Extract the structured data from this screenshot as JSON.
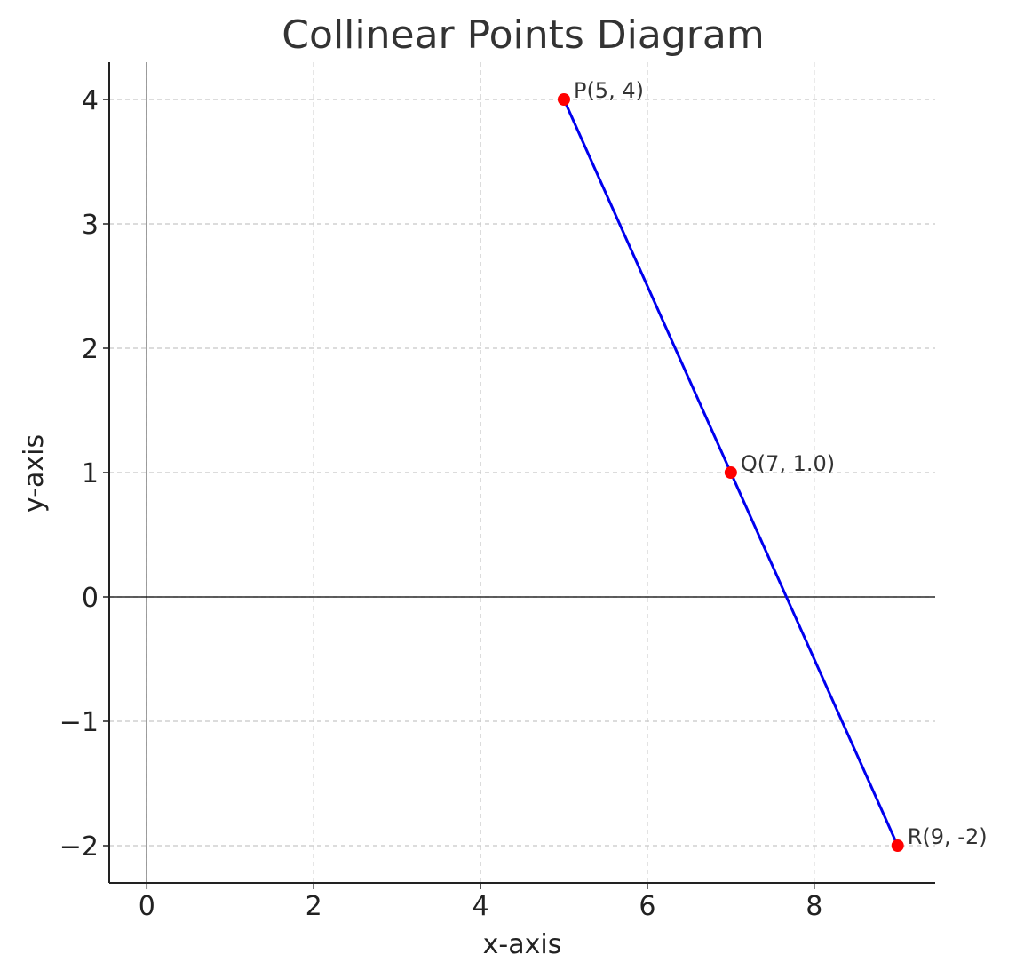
{
  "chart_data": {
    "type": "scatter",
    "title": "Collinear Points Diagram",
    "xlabel": "x-axis",
    "ylabel": "y-axis",
    "xlim": [
      -0.45,
      9.45
    ],
    "ylim": [
      -2.3,
      4.3
    ],
    "x_ticks": [
      0,
      2,
      4,
      6,
      8
    ],
    "x_tick_labels": [
      "0",
      "2",
      "4",
      "6",
      "8"
    ],
    "y_ticks": [
      -2,
      -1,
      0,
      1,
      2,
      3,
      4
    ],
    "y_tick_labels": [
      "−2",
      "−1",
      "0",
      "1",
      "2",
      "3",
      "4"
    ],
    "grid": true,
    "points": [
      {
        "label": "P(5, 4)",
        "x": 5,
        "y": 4
      },
      {
        "label": "Q(7, 1.0)",
        "x": 7,
        "y": 1.0
      },
      {
        "label": "R(9, -2)",
        "x": 9,
        "y": -2
      }
    ],
    "line_color": "#0000ee",
    "point_color": "#ff0000",
    "reference_lines": {
      "x0": true,
      "y0": true
    }
  }
}
